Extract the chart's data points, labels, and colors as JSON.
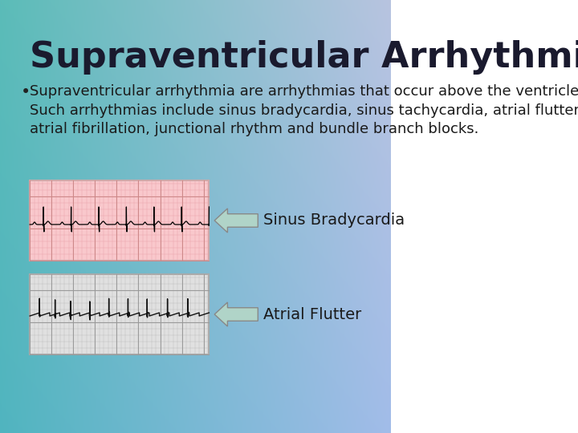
{
  "title": "Supraventricular Arrhythmias",
  "title_fontsize": 32,
  "title_color": "#1a1a2e",
  "bullet_text": "Supraventricular arrhythmia are arrhythmias that occur above the ventricles.\nSuch arrhythmias include sinus bradycardia, sinus tachycardia, atrial flutter,\natrial fibrillation, junctional rhythm and bundle branch blocks.",
  "bullet_fontsize": 13,
  "label1": "Sinus Bradycardia",
  "label2": "Atrial Flutter",
  "label_fontsize": 14,
  "ecg1_bg": "#f9c8cc",
  "ecg2_bg": "#e0e0e0",
  "arrow_color": "#b0d4c8",
  "arrow_edge": "#888888"
}
